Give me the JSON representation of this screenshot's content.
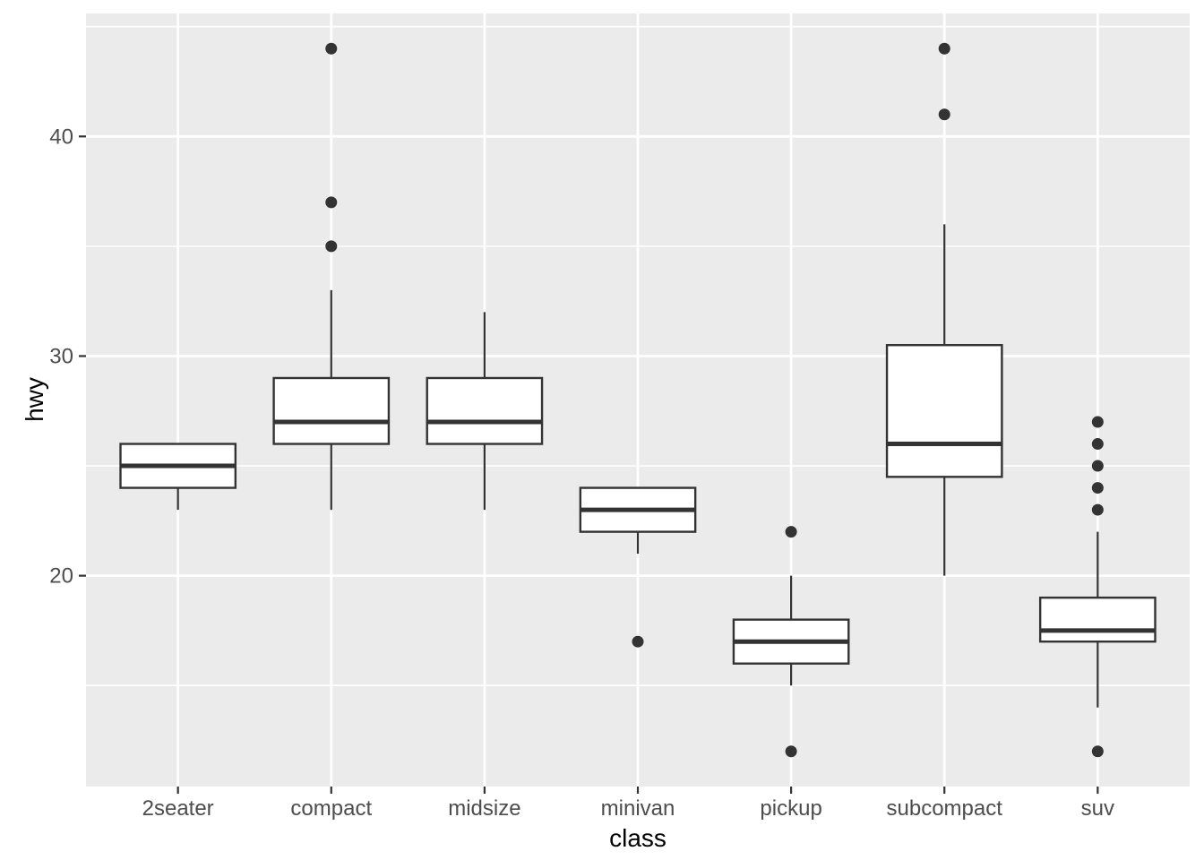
{
  "chart_data": {
    "type": "boxplot",
    "title": "",
    "xlabel": "class",
    "ylabel": "hwy",
    "categories": [
      "2seater",
      "compact",
      "midsize",
      "minivan",
      "pickup",
      "subcompact",
      "suv"
    ],
    "ylim": [
      10.4,
      45.6
    ],
    "yticks": [
      20,
      30,
      40
    ],
    "yticks_minor": [
      15,
      25,
      35,
      45
    ],
    "grid": "horizontal major+minor white lines, vertical major line per category, on grey panel",
    "legend": "none",
    "series": [
      {
        "category": "2seater",
        "lower_whisker": 23,
        "q1": 24,
        "median": 25,
        "q3": 26,
        "upper_whisker": 26,
        "outliers": []
      },
      {
        "category": "compact",
        "lower_whisker": 23,
        "q1": 26,
        "median": 27,
        "q3": 29,
        "upper_whisker": 33,
        "outliers": [
          35,
          37,
          44
        ]
      },
      {
        "category": "midsize",
        "lower_whisker": 23,
        "q1": 26,
        "median": 27,
        "q3": 29,
        "upper_whisker": 32,
        "outliers": []
      },
      {
        "category": "minivan",
        "lower_whisker": 21,
        "q1": 22,
        "median": 23,
        "q3": 24,
        "upper_whisker": 24,
        "outliers": [
          17
        ]
      },
      {
        "category": "pickup",
        "lower_whisker": 15,
        "q1": 16,
        "median": 17,
        "q3": 18,
        "upper_whisker": 20,
        "outliers": [
          22,
          12
        ]
      },
      {
        "category": "subcompact",
        "lower_whisker": 20,
        "q1": 24.5,
        "median": 26,
        "q3": 30.5,
        "upper_whisker": 36,
        "outliers": [
          41,
          44
        ]
      },
      {
        "category": "suv",
        "lower_whisker": 14,
        "q1": 17,
        "median": 17.5,
        "q3": 19,
        "upper_whisker": 22,
        "outliers": [
          27,
          26,
          25,
          24,
          23,
          12
        ]
      }
    ]
  },
  "style": {
    "panel_fill": "#EBEBEB",
    "grid_color": "#FFFFFF",
    "box_stroke": "#333333",
    "box_fill": "#FFFFFF",
    "outlier_fill": "#333333",
    "tick_color": "#333333",
    "tick_label_color": "#4D4D4D",
    "axis_title_color": "#000000",
    "background": "#FFFFFF"
  }
}
